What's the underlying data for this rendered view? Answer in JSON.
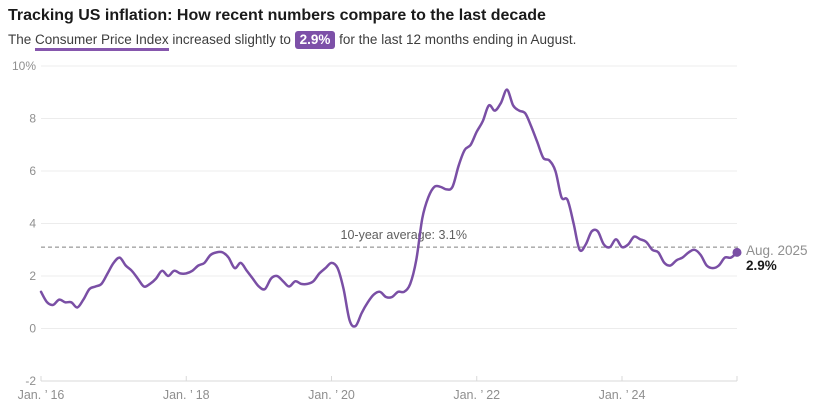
{
  "header": {
    "title": "Tracking US inflation: How recent numbers compare to the last decade",
    "subtitle_prefix": "The ",
    "subtitle_term": "Consumer Price Index",
    "subtitle_mid": " increased slightly to ",
    "subtitle_value": "2.9%",
    "subtitle_suffix": " for the last 12 months ending in August."
  },
  "colors": {
    "line": "#7a4fa5",
    "badge_bg": "#7d50a8",
    "term_underline": "#8657ad",
    "gridline": "#ececec",
    "axis_line": "#d9d9d9",
    "tick_label": "#8f8f8f",
    "avg_line": "#808080",
    "avg_label": "#5f5f5f",
    "end_date_label": "#8f8f8f",
    "end_value_label": "#1a1a1a"
  },
  "chart_data": {
    "type": "line",
    "title": "Tracking US inflation: How recent numbers compare to the last decade",
    "unit": "%",
    "frequency": "monthly",
    "x_start": "2016-01",
    "x_end": "2025-08",
    "ylim": [
      -2,
      10
    ],
    "grid": true,
    "y_ticks": {
      "values": [
        10,
        8,
        6,
        4,
        2,
        0,
        -2
      ],
      "labels": [
        "10%",
        "8",
        "6",
        "4",
        "2",
        "0",
        "-2"
      ]
    },
    "x_ticks": [
      {
        "month_index": 0,
        "label": "Jan. ’ 16"
      },
      {
        "month_index": 24,
        "label": "Jan. ’ 18"
      },
      {
        "month_index": 48,
        "label": "Jan. ’ 20"
      },
      {
        "month_index": 72,
        "label": "Jan. ’ 22"
      },
      {
        "month_index": 96,
        "label": "Jan. ’ 24"
      },
      {
        "month_index": 115,
        "label": ""
      }
    ],
    "series": [
      {
        "name": "Consumer Price Index, 12-month change (%)",
        "color": "#7a4fa5",
        "values": [
          1.4,
          1.0,
          0.9,
          1.1,
          1.0,
          1.0,
          0.8,
          1.1,
          1.5,
          1.6,
          1.7,
          2.1,
          2.5,
          2.7,
          2.4,
          2.2,
          1.9,
          1.6,
          1.7,
          1.9,
          2.2,
          2.0,
          2.2,
          2.1,
          2.1,
          2.2,
          2.4,
          2.5,
          2.8,
          2.9,
          2.9,
          2.7,
          2.3,
          2.5,
          2.2,
          1.9,
          1.6,
          1.5,
          1.9,
          2.0,
          1.8,
          1.6,
          1.8,
          1.7,
          1.7,
          1.8,
          2.1,
          2.3,
          2.5,
          2.3,
          1.5,
          0.3,
          0.1,
          0.6,
          1.0,
          1.3,
          1.4,
          1.2,
          1.2,
          1.4,
          1.4,
          1.7,
          2.6,
          4.2,
          5.0,
          5.4,
          5.4,
          5.3,
          5.4,
          6.2,
          6.8,
          7.0,
          7.5,
          7.9,
          8.5,
          8.3,
          8.6,
          9.1,
          8.5,
          8.3,
          8.2,
          7.7,
          7.1,
          6.5,
          6.4,
          6.0,
          5.0,
          4.9,
          4.0,
          3.0,
          3.2,
          3.7,
          3.7,
          3.2,
          3.1,
          3.4,
          3.1,
          3.2,
          3.5,
          3.4,
          3.3,
          3.0,
          2.9,
          2.5,
          2.4,
          2.6,
          2.7,
          2.9,
          3.0,
          2.8,
          2.4,
          2.3,
          2.4,
          2.7,
          2.7,
          2.9
        ]
      }
    ],
    "average_line": {
      "value": 3.1,
      "label": "10-year average: 3.1%"
    },
    "end_annotation": {
      "date_label": "Aug. 2025",
      "value_label": "2.9%",
      "value": 2.9
    }
  }
}
